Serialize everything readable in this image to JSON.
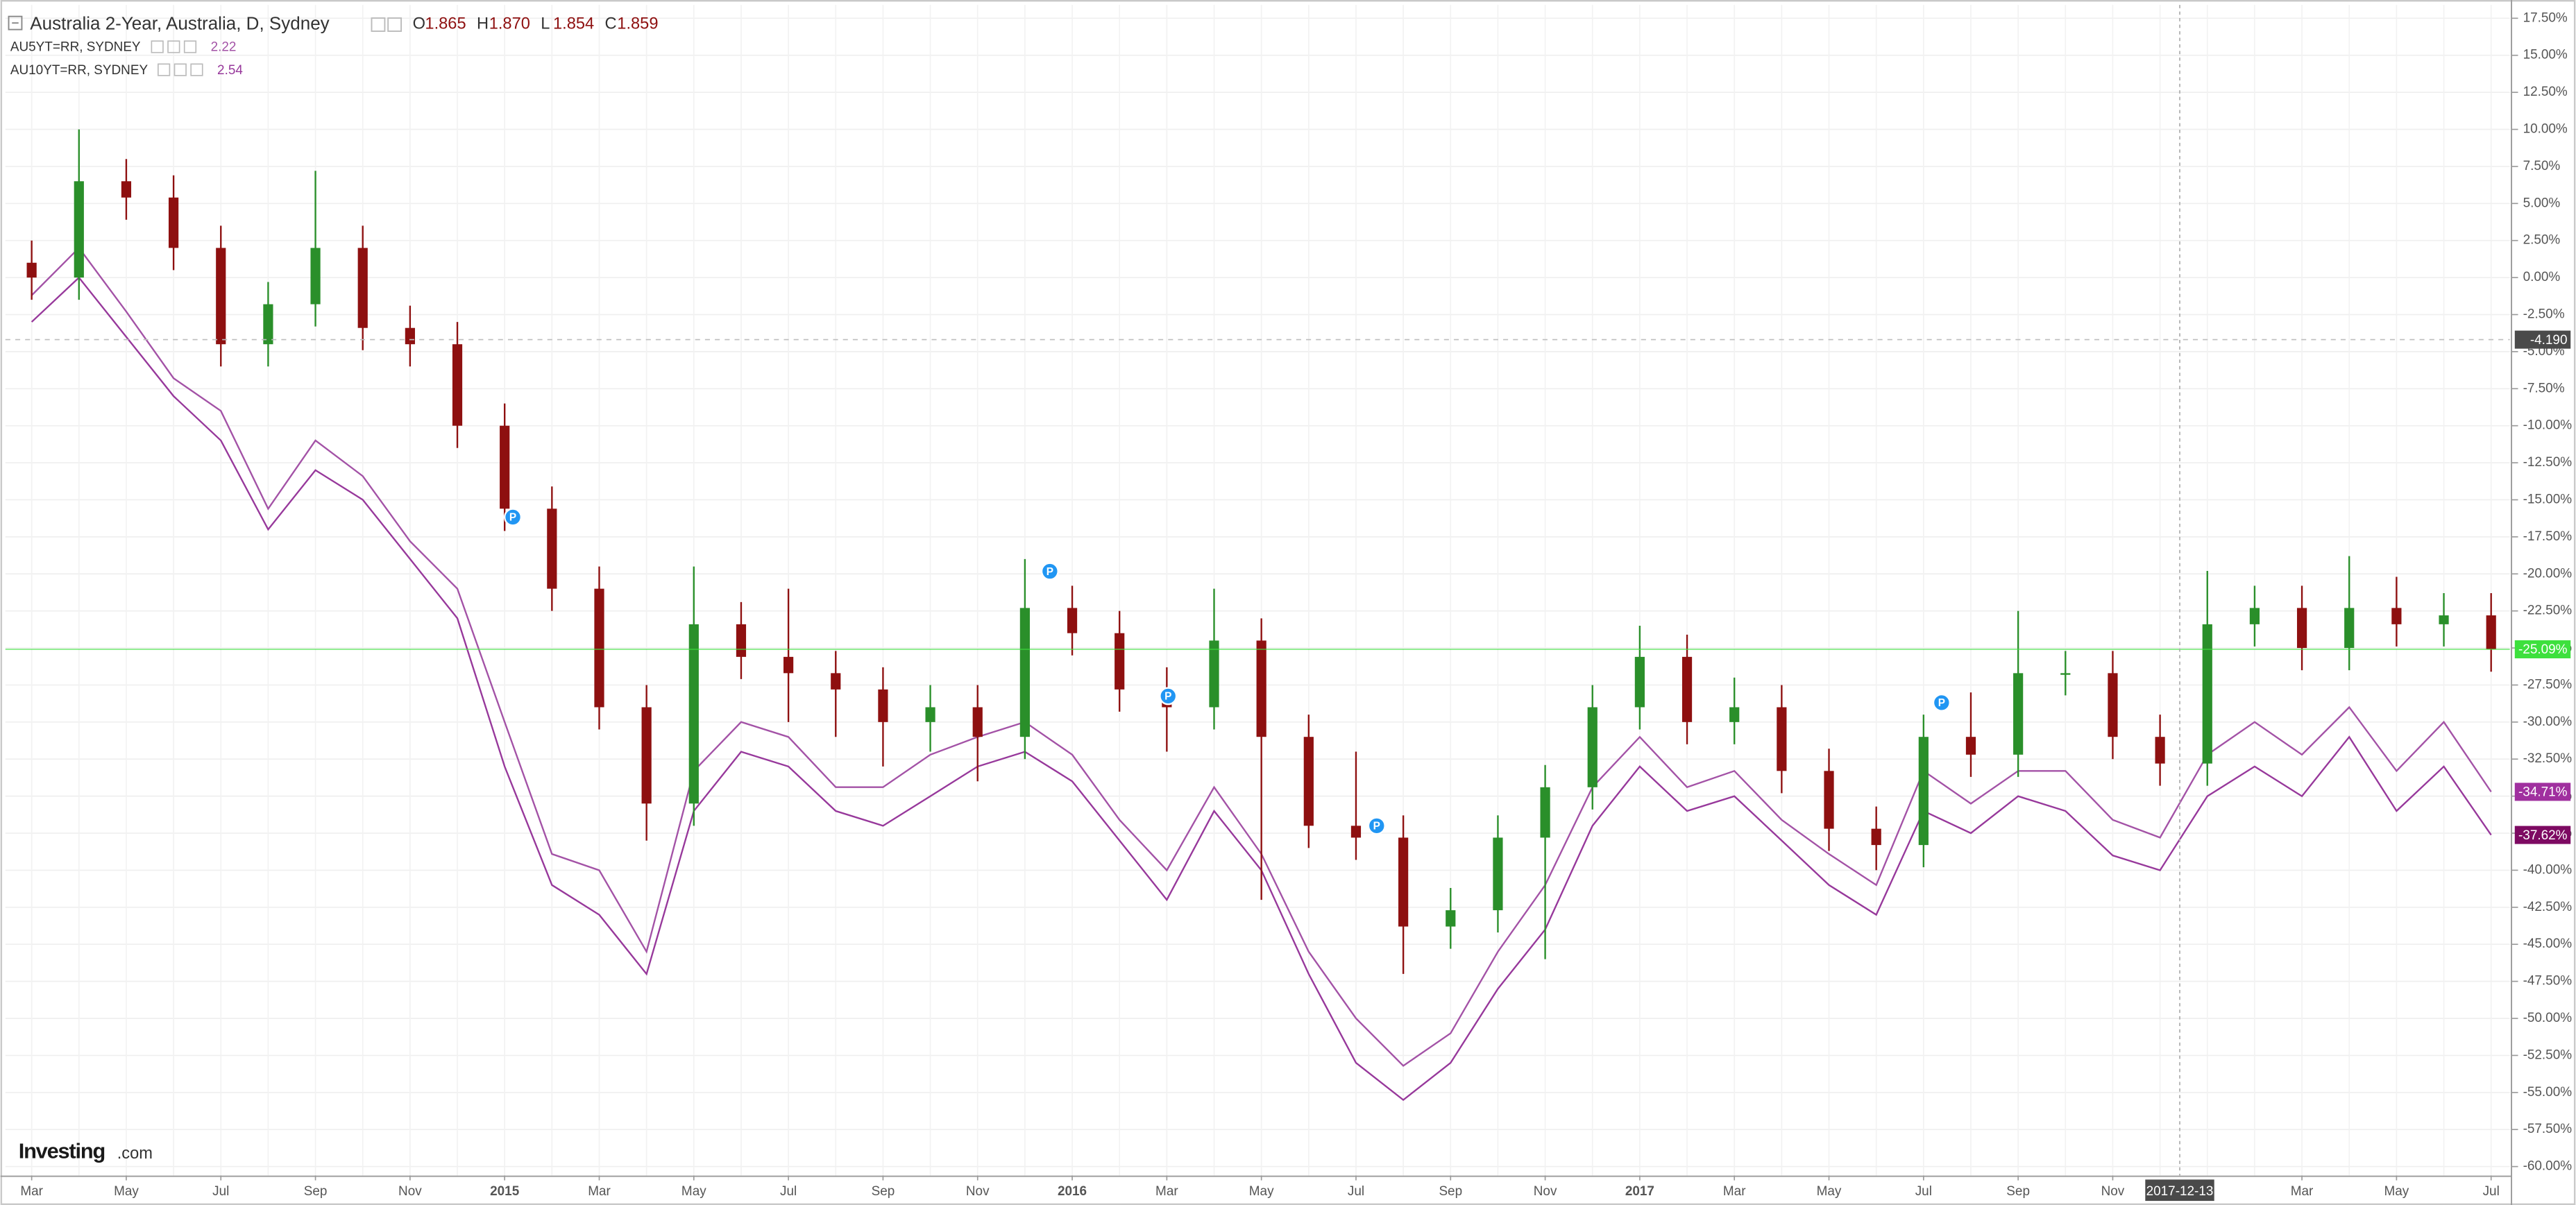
{
  "chart_data": {
    "type": "candlestick",
    "title": "Australia 2-Year, Australia, D, Sydney",
    "ohlc_labels": [
      "O",
      "H",
      "L",
      "C"
    ],
    "ohlc_values": [
      "1.865",
      "1.870",
      "1.854",
      "1.859"
    ],
    "categories": [
      "Mar",
      null,
      "May",
      null,
      "Jul",
      null,
      "Sep",
      null,
      "Nov",
      null,
      "2015",
      null,
      "Mar",
      null,
      "May",
      null,
      "Jul",
      null,
      "Sep",
      null,
      "Nov",
      null,
      "2016",
      null,
      "Mar",
      null,
      "May",
      null,
      "Jul",
      null,
      "Sep",
      null,
      "Nov",
      null,
      "2017",
      null,
      "Mar",
      null,
      "May",
      null,
      "Jul",
      null,
      "Sep",
      null,
      "Nov",
      null,
      null,
      null,
      "Mar",
      null,
      "May",
      null,
      "Jul"
    ],
    "open": [
      1,
      0,
      6.5,
      5.4,
      2,
      -4.5,
      -1.8,
      2,
      -3.4,
      -4.5,
      -10,
      -15.6,
      -21,
      -29,
      -35.5,
      -23.4,
      -25.6,
      -26.7,
      -27.8,
      -30,
      -29,
      -31,
      -22.3,
      -24,
      -27.8,
      -29,
      -24.5,
      -31,
      -37,
      -37.8,
      -43.8,
      -42.7,
      -37.8,
      -34.4,
      -29,
      -25.6,
      -30,
      -29,
      -33.3,
      -37.2,
      -38.3,
      -31,
      -32.2,
      -26.7,
      -26.7,
      -31,
      -32.8,
      -23.4,
      -22.3,
      -25,
      -22.3,
      -23.4,
      -22.8
    ],
    "high": [
      2.5,
      10,
      8,
      6.9,
      3.5,
      -0.3,
      7.2,
      3.5,
      -1.9,
      -3,
      -8.5,
      -14.1,
      -19.5,
      -27.5,
      -19.5,
      -21.9,
      -21,
      -25.2,
      -26.3,
      -27.5,
      -27.5,
      -19,
      -20.8,
      -22.5,
      -26.3,
      -21,
      -23,
      -29.5,
      -32,
      -36.3,
      -41.2,
      -36.3,
      -32.9,
      -27.5,
      -23.5,
      -24.1,
      -27,
      -27.5,
      -31.8,
      -35.7,
      -29.5,
      -28,
      -22.5,
      -25.2,
      -25.2,
      -29.5,
      -19.8,
      -20.8,
      -20.8,
      -18.8,
      -20.2,
      -21.3,
      -21.3
    ],
    "low": [
      -1.5,
      -1.5,
      3.9,
      0.5,
      -6,
      -6,
      -3.3,
      -4.9,
      -6,
      -11.5,
      -17.1,
      -22.5,
      -30.5,
      -38,
      -37,
      -27.1,
      -30,
      -31,
      -33,
      -32,
      -34,
      -32.5,
      -25.5,
      -29.3,
      -32,
      -30.5,
      -42,
      -38.5,
      -39.3,
      -47,
      -45.3,
      -44.2,
      -46,
      -35.9,
      -30.5,
      -31.5,
      -31.5,
      -34.8,
      -38.7,
      -40,
      -39.8,
      -33.7,
      -33.7,
      -28.2,
      -32.5,
      -34.3,
      -34.3,
      -24.9,
      -26.5,
      -26.5,
      -24.9,
      -24.9,
      -26.6
    ],
    "close": [
      0,
      6.5,
      5.4,
      2,
      -4.5,
      -1.8,
      2,
      -3.4,
      -4.5,
      -10,
      -15.6,
      -21,
      -29,
      -35.5,
      -23.4,
      -25.6,
      -26.7,
      -27.8,
      -30,
      -29,
      -31,
      -22.3,
      -24,
      -27.8,
      -29,
      -24.5,
      -31,
      -37,
      -37.8,
      -43.8,
      -42.7,
      -37.8,
      -34.4,
      -29,
      -25.6,
      -30,
      -29,
      -33.3,
      -37.2,
      -38.3,
      -31,
      -32.2,
      -26.7,
      -26.7,
      -31,
      -32.8,
      -23.4,
      -22.3,
      -25,
      -22.3,
      -23.4,
      -22.8,
      -25.09
    ],
    "up_color": "#2a8f2a",
    "down_color": "#8e1010",
    "series": [
      {
        "name": "AU5YT=RR, SYDNEY",
        "last": "2.22",
        "color": "#a352a6",
        "values": [
          -1.2,
          2,
          -2.3,
          -6.8,
          -9,
          -15.6,
          -11,
          -13.4,
          -17.8,
          -21,
          -30,
          -38.9,
          -40,
          -45.5,
          -33.3,
          -30,
          -31,
          -34.4,
          -34.4,
          -32.2,
          -31,
          -30,
          -32.2,
          -36.6,
          -40,
          -34.4,
          -38.9,
          -45.5,
          -50,
          -53.2,
          -51,
          -45.5,
          -41,
          -34.4,
          -31,
          -34.4,
          -33.3,
          -36.6,
          -38.9,
          -41,
          -33.3,
          -35.5,
          -33.3,
          -33.3,
          -36.6,
          -37.8,
          -32.2,
          -30,
          -32.2,
          -29,
          -33.3,
          -30,
          -34.71
        ]
      },
      {
        "name": "AU10YT=RR, SYDNEY",
        "last": "2.54",
        "color": "#97389b",
        "values": [
          -3,
          0,
          -4,
          -8,
          -11,
          -17,
          -13,
          -15,
          -19,
          -23,
          -33,
          -41,
          -43,
          -47,
          -36,
          -32,
          -33,
          -36,
          -37,
          -35,
          -33,
          -32,
          -34,
          -38,
          -42,
          -36,
          -40,
          -47,
          -53,
          -55.5,
          -53,
          -48,
          -44,
          -37,
          -33,
          -36,
          -35,
          -38,
          -41,
          -43,
          -36,
          -37.5,
          -35,
          -36,
          -39,
          -40,
          -35,
          -33,
          -35,
          -31,
          -36,
          -33,
          -37.62
        ]
      }
    ],
    "ylim": [
      -60.6,
      18.4
    ],
    "yticks": [
      {
        "value": 17.5,
        "label": "17.50%"
      },
      {
        "value": 15,
        "label": "15.00%"
      },
      {
        "value": 12.5,
        "label": "12.50%"
      },
      {
        "value": 10,
        "label": "10.00%"
      },
      {
        "value": 7.5,
        "label": "7.50%"
      },
      {
        "value": 5,
        "label": "5.00%"
      },
      {
        "value": 2.5,
        "label": "2.50%"
      },
      {
        "value": 0,
        "label": "0.00%"
      },
      {
        "value": -2.5,
        "label": "-2.50%"
      },
      {
        "value": -5,
        "label": "-5.00%"
      },
      {
        "value": -7.5,
        "label": "-7.50%"
      },
      {
        "value": -10,
        "label": "-10.00%"
      },
      {
        "value": -12.5,
        "label": "-12.50%"
      },
      {
        "value": -15,
        "label": "-15.00%"
      },
      {
        "value": -17.5,
        "label": "-17.50%"
      },
      {
        "value": -20,
        "label": "-20.00%"
      },
      {
        "value": -22.5,
        "label": "-22.50%"
      },
      {
        "value": -25,
        "label": "-25.00%"
      },
      {
        "value": -27.5,
        "label": "-27.50%"
      },
      {
        "value": -30,
        "label": "-30.00%"
      },
      {
        "value": -32.5,
        "label": "-32.50%"
      },
      {
        "value": -35,
        "label": "-35.00%"
      },
      {
        "value": -37.5,
        "label": "-37.50%"
      },
      {
        "value": -40,
        "label": "-40.00%"
      },
      {
        "value": -42.5,
        "label": "-42.50%"
      },
      {
        "value": -45,
        "label": "-45.00%"
      },
      {
        "value": -47.5,
        "label": "-47.50%"
      },
      {
        "value": -50,
        "label": "-50.00%"
      },
      {
        "value": -52.5,
        "label": "-52.50%"
      },
      {
        "value": -55,
        "label": "-55.00%"
      },
      {
        "value": -57.5,
        "label": "-57.50%"
      },
      {
        "value": -60,
        "label": "-60.00%"
      }
    ],
    "grid": true,
    "price_tags": [
      {
        "value": -4.19,
        "label": "-4.190",
        "color": "#4a4a4a",
        "line": "dashed"
      },
      {
        "value": -25.09,
        "label": "-25.09%",
        "color": "#3de03d",
        "line": "solid"
      },
      {
        "value": -34.71,
        "label": "-34.71%",
        "color": "#a0309f",
        "line": "none"
      },
      {
        "value": -37.62,
        "label": "-37.62%",
        "color": "#7d0a62",
        "line": "none"
      }
    ],
    "crosshair_label": "2017-12-13",
    "event_marker_label": "P",
    "brand": {
      "name": "Investing",
      "suffix": ".com"
    }
  }
}
